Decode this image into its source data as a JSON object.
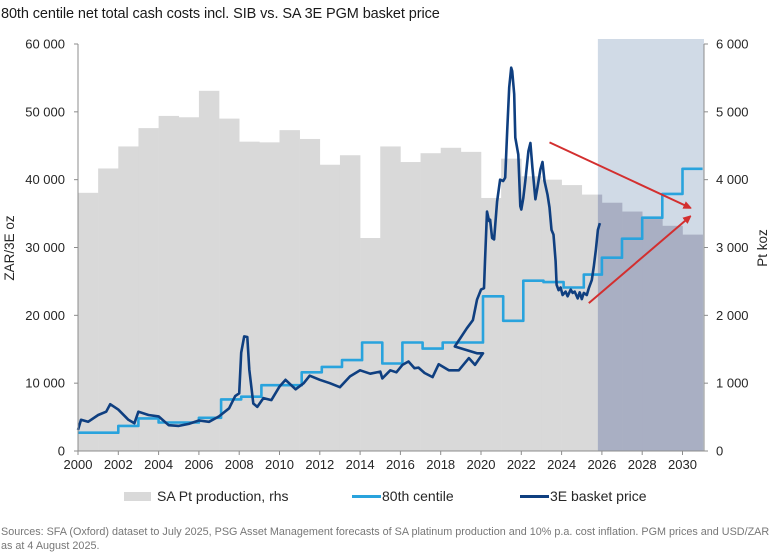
{
  "title": "80th centile net total cash costs incl. SIB vs. SA 3E PGM basket price",
  "legend": {
    "production": "SA Pt production, rhs",
    "centile": "80th centile",
    "basket": "3E basket price"
  },
  "sources": "Sources: SFA (Oxford) dataset to July 2025, PSG Asset Management forecasts of SA platinum production and 10% p.a. cost inflation. PGM prices and USD/ZAR as at 4 August 2025.",
  "colors": {
    "production": "#d9d9d9",
    "production_forecast": "#a9afc3",
    "forecast_shade": "#d0dae6",
    "centile": "#29a3dd",
    "basket": "#0f3f80",
    "arrow": "#d32f2f",
    "axis": "#8c8c8c"
  },
  "chart_data": {
    "type": "line",
    "title": "80th centile net total cash costs incl. SIB vs. SA 3E PGM basket price",
    "xlabel": "",
    "ylabel": "ZAR/3E oz",
    "y2label": "Pt koz",
    "xlim": [
      2000,
      2031
    ],
    "ylim": [
      0,
      60000
    ],
    "y2lim": [
      0,
      6000
    ],
    "xticks": [
      "2000",
      "2002",
      "2004",
      "2006",
      "2008",
      "2010",
      "2012",
      "2014",
      "2016",
      "2018",
      "2020",
      "2022",
      "2024",
      "2026",
      "2028",
      "2030"
    ],
    "yticks": [
      "0",
      "10 000",
      "20 000",
      "30 000",
      "40 000",
      "50 000",
      "60 000"
    ],
    "y2ticks": [
      "0",
      "1 000",
      "2 000",
      "3 000",
      "4 000",
      "5 000",
      "6 000"
    ],
    "grid": false,
    "legend_position": "bottom",
    "forecast_region": {
      "from": 2025.8,
      "to": 2031
    },
    "production": {
      "name": "SA Pt production, rhs",
      "type": "bar",
      "axis": "right",
      "years": [
        2000,
        2001,
        2002,
        2003,
        2004,
        2005,
        2006,
        2007,
        2008,
        2009,
        2010,
        2011,
        2012,
        2013,
        2014,
        2015,
        2016,
        2017,
        2018,
        2019,
        2020,
        2021,
        2022,
        2023,
        2024,
        2025,
        2026,
        2027,
        2028,
        2029,
        2030
      ],
      "values": [
        3806,
        4165,
        4490,
        4760,
        4940,
        4920,
        5310,
        4900,
        4560,
        4550,
        4730,
        4600,
        4220,
        4360,
        3140,
        4490,
        4260,
        4390,
        4470,
        4410,
        3730,
        4310,
        4050,
        4000,
        3920,
        3780,
        3660,
        3530,
        3420,
        3320,
        3190
      ]
    },
    "series": [
      {
        "name": "80th centile",
        "type": "step",
        "axis": "left",
        "points": [
          [
            2000.0,
            2700
          ],
          [
            2002.0,
            2700
          ],
          [
            2002.0,
            3700
          ],
          [
            2003.0,
            3700
          ],
          [
            2003.0,
            4800
          ],
          [
            2004.0,
            4800
          ],
          [
            2004.0,
            4200
          ],
          [
            2006.0,
            4200
          ],
          [
            2006.0,
            4900
          ],
          [
            2007.1,
            4900
          ],
          [
            2007.1,
            7600
          ],
          [
            2008.1,
            7600
          ],
          [
            2008.1,
            8000
          ],
          [
            2009.1,
            8000
          ],
          [
            2009.1,
            9700
          ],
          [
            2011.1,
            9700
          ],
          [
            2011.1,
            11600
          ],
          [
            2012.1,
            11600
          ],
          [
            2012.1,
            12400
          ],
          [
            2013.1,
            12400
          ],
          [
            2013.1,
            13400
          ],
          [
            2014.1,
            13400
          ],
          [
            2014.1,
            16000
          ],
          [
            2015.1,
            16000
          ],
          [
            2015.1,
            12900
          ],
          [
            2016.1,
            12900
          ],
          [
            2016.1,
            16000
          ],
          [
            2017.1,
            16000
          ],
          [
            2017.1,
            15100
          ],
          [
            2018.1,
            15100
          ],
          [
            2018.1,
            16000
          ],
          [
            2020.1,
            16000
          ],
          [
            2020.1,
            22800
          ],
          [
            2021.1,
            22800
          ],
          [
            2021.1,
            19200
          ],
          [
            2022.1,
            19200
          ],
          [
            2022.1,
            25100
          ],
          [
            2023.1,
            25100
          ],
          [
            2023.1,
            24900
          ],
          [
            2024.1,
            24900
          ],
          [
            2024.1,
            24100
          ],
          [
            2025.1,
            24100
          ],
          [
            2025.1,
            26000
          ],
          [
            2026.0,
            26000
          ],
          [
            2026.0,
            28500
          ],
          [
            2027.0,
            28500
          ],
          [
            2027.0,
            31300
          ],
          [
            2028.0,
            31300
          ],
          [
            2028.0,
            34400
          ],
          [
            2029.0,
            34400
          ],
          [
            2029.0,
            37900
          ],
          [
            2030.0,
            37900
          ],
          [
            2030.0,
            41600
          ],
          [
            2031.0,
            41600
          ]
        ]
      },
      {
        "name": "3E basket price",
        "type": "line",
        "axis": "left",
        "points": [
          [
            2000.0,
            3100
          ],
          [
            2000.15,
            4600
          ],
          [
            2000.5,
            4300
          ],
          [
            2001.0,
            5300
          ],
          [
            2001.4,
            5800
          ],
          [
            2001.6,
            6900
          ],
          [
            2002.0,
            6100
          ],
          [
            2002.5,
            4600
          ],
          [
            2002.8,
            4100
          ],
          [
            2003.0,
            5800
          ],
          [
            2003.5,
            5300
          ],
          [
            2004.0,
            5100
          ],
          [
            2004.5,
            3800
          ],
          [
            2005.0,
            3700
          ],
          [
            2005.5,
            4000
          ],
          [
            2006.0,
            4500
          ],
          [
            2006.5,
            4300
          ],
          [
            2007.0,
            5100
          ],
          [
            2007.5,
            6300
          ],
          [
            2007.8,
            8100
          ],
          [
            2008.0,
            8500
          ],
          [
            2008.1,
            14500
          ],
          [
            2008.25,
            16900
          ],
          [
            2008.4,
            16800
          ],
          [
            2008.5,
            12000
          ],
          [
            2008.7,
            7000
          ],
          [
            2008.9,
            6500
          ],
          [
            2009.2,
            7800
          ],
          [
            2009.6,
            7500
          ],
          [
            2010.0,
            9500
          ],
          [
            2010.3,
            10500
          ],
          [
            2010.8,
            9100
          ],
          [
            2011.2,
            10000
          ],
          [
            2011.5,
            11100
          ],
          [
            2012.0,
            10500
          ],
          [
            2012.5,
            10000
          ],
          [
            2013.0,
            9400
          ],
          [
            2013.5,
            11000
          ],
          [
            2014.0,
            11900
          ],
          [
            2014.5,
            11400
          ],
          [
            2015.0,
            11700
          ],
          [
            2015.1,
            10700
          ],
          [
            2015.5,
            11900
          ],
          [
            2015.8,
            11600
          ],
          [
            2016.1,
            12700
          ],
          [
            2016.4,
            13200
          ],
          [
            2016.7,
            12200
          ],
          [
            2016.9,
            12300
          ],
          [
            2017.2,
            11500
          ],
          [
            2017.6,
            10900
          ],
          [
            2017.9,
            12800
          ],
          [
            2018.4,
            11900
          ],
          [
            2018.9,
            11900
          ],
          [
            2019.4,
            13700
          ],
          [
            2019.7,
            12700
          ],
          [
            2020.1,
            14400
          ],
          [
            2019.8,
            14400
          ],
          [
            2018.7,
            15400
          ],
          [
            2019.3,
            18100
          ],
          [
            2019.6,
            19300
          ],
          [
            2019.8,
            22300
          ],
          [
            2020.0,
            23800
          ],
          [
            2020.15,
            24000
          ],
          [
            2020.2,
            28000
          ],
          [
            2020.3,
            35300
          ],
          [
            2020.4,
            33900
          ],
          [
            2020.45,
            34100
          ],
          [
            2020.55,
            31400
          ],
          [
            2020.65,
            31200
          ],
          [
            2020.8,
            36800
          ],
          [
            2020.95,
            40000
          ],
          [
            2021.1,
            39800
          ],
          [
            2021.2,
            40300
          ],
          [
            2021.3,
            47200
          ],
          [
            2021.4,
            53600
          ],
          [
            2021.5,
            56500
          ],
          [
            2021.55,
            56000
          ],
          [
            2021.65,
            52600
          ],
          [
            2021.7,
            46200
          ],
          [
            2021.85,
            43700
          ],
          [
            2021.95,
            36100
          ],
          [
            2022.0,
            35600
          ],
          [
            2022.1,
            37300
          ],
          [
            2022.2,
            39800
          ],
          [
            2022.35,
            44200
          ],
          [
            2022.45,
            45400
          ],
          [
            2022.55,
            41800
          ],
          [
            2022.7,
            37100
          ],
          [
            2022.8,
            38800
          ],
          [
            2022.95,
            41500
          ],
          [
            2023.05,
            42600
          ],
          [
            2023.15,
            39800
          ],
          [
            2023.3,
            37800
          ],
          [
            2023.4,
            35900
          ],
          [
            2023.5,
            32600
          ],
          [
            2023.6,
            31900
          ],
          [
            2023.7,
            28000
          ],
          [
            2023.75,
            24500
          ],
          [
            2023.85,
            23700
          ],
          [
            2023.95,
            24100
          ],
          [
            2024.05,
            23000
          ],
          [
            2024.2,
            23500
          ],
          [
            2024.3,
            22800
          ],
          [
            2024.45,
            23800
          ],
          [
            2024.55,
            23300
          ],
          [
            2024.65,
            23500
          ],
          [
            2024.8,
            22500
          ],
          [
            2024.9,
            23400
          ],
          [
            2025.0,
            22400
          ],
          [
            2025.1,
            23300
          ],
          [
            2025.25,
            23000
          ],
          [
            2025.35,
            24000
          ],
          [
            2025.5,
            25200
          ],
          [
            2025.6,
            27200
          ],
          [
            2025.7,
            29700
          ],
          [
            2025.8,
            32600
          ],
          [
            2025.9,
            33600
          ]
        ]
      }
    ],
    "annotations": [
      {
        "type": "arrow",
        "from": [
          2023.4,
          45500
        ],
        "to": [
          2030.35,
          35900
        ],
        "color": "#d32f2f"
      },
      {
        "type": "arrow",
        "from": [
          2025.35,
          21800
        ],
        "to": [
          2030.35,
          34500
        ],
        "color": "#d32f2f"
      }
    ]
  }
}
